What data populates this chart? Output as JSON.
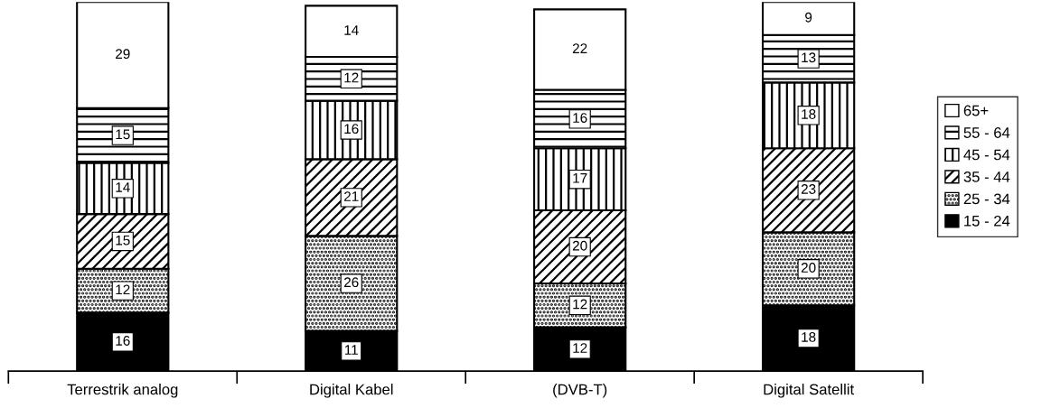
{
  "chart_data": {
    "type": "bar",
    "stacked": true,
    "data_labels": true,
    "legend": "right",
    "grid": false,
    "tick_labels": "x",
    "categories": [
      "Terrestrik analog",
      "Digital Kabel",
      "(DVB-T)",
      "Digital Satellit"
    ],
    "series": [
      {
        "name": "15 - 24",
        "color": "#000000",
        "values": [
          16,
          11,
          12,
          18
        ]
      },
      {
        "name": "25 - 34",
        "color": "#000000",
        "values": [
          12,
          26,
          12,
          20
        ]
      },
      {
        "name": "35 - 44",
        "color": "#000000",
        "values": [
          15,
          21,
          20,
          23
        ]
      },
      {
        "name": "45 - 54",
        "color": "#000000",
        "values": [
          14,
          16,
          17,
          18
        ]
      },
      {
        "name": "55 - 64",
        "color": "#000000",
        "values": [
          15,
          12,
          16,
          13
        ]
      },
      {
        "name": "65+",
        "color": "#ffffff",
        "values": [
          29,
          14,
          22,
          9
        ]
      }
    ]
  }
}
